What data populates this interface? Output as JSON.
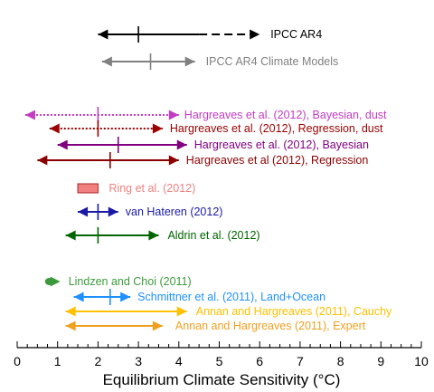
{
  "chart_data": {
    "type": "range",
    "xlabel": "Equilibrium Climate Sensitivity (°C)",
    "xlim": [
      0,
      10
    ],
    "xticks": [
      "0",
      "1",
      "2",
      "3",
      "4",
      "5",
      "6",
      "7",
      "8",
      "9",
      "10"
    ],
    "minor_tick_step": 0.25,
    "grid": false,
    "series": [
      {
        "name": "IPCC AR4",
        "low": 2.0,
        "central": 3.0,
        "high": 6.0,
        "dashed_from": 4.5,
        "color": "#000000",
        "style": "solid-then-dashed",
        "marker": "tick"
      },
      {
        "name": "IPCC AR4 Climate Models",
        "low": 2.1,
        "central": 3.3,
        "high": 4.4,
        "color": "#808080",
        "style": "solid",
        "marker": "tick"
      },
      {
        "name": "Hargreaves et al. (2012), Bayesian, dust",
        "low": 0.2,
        "central": 2.0,
        "high": 4.0,
        "color": "#c23cc2",
        "style": "dotted",
        "marker": "tick"
      },
      {
        "name": "Hargreaves et al. (2012), Regression, dust",
        "low": 0.8,
        "central": 2.0,
        "high": 3.6,
        "color": "#9b0000",
        "style": "dotted",
        "marker": "tick"
      },
      {
        "name": "Hargreaves et al. (2012), Bayesian",
        "low": 1.0,
        "central": 2.5,
        "high": 4.2,
        "color": "#800080",
        "style": "solid",
        "marker": "tick"
      },
      {
        "name": "Hargreaves et al (2012), Regression",
        "low": 0.5,
        "central": 2.3,
        "high": 4.0,
        "color": "#8b0000",
        "style": "solid",
        "marker": "tick"
      },
      {
        "name": "Ring et al. (2012)",
        "low": 1.5,
        "high": 2.0,
        "color": "#f08080",
        "style": "box"
      },
      {
        "name": "van Hateren (2012)",
        "low": 1.5,
        "central": 2.0,
        "high": 2.5,
        "color": "#1a1aa6",
        "style": "solid",
        "marker": "tick"
      },
      {
        "name": "Aldrin et al. (2012)",
        "low": 1.2,
        "central": 2.0,
        "high": 3.5,
        "color": "#006400",
        "style": "solid",
        "marker": "tick"
      },
      {
        "name": "Lindzen and Choi  (2011)",
        "low": 0.7,
        "central": 0.8,
        "high": 1.0,
        "color": "#3c9a3c",
        "style": "solid",
        "marker": "dot"
      },
      {
        "name": "Schmittner et al.  (2011), Land+Ocean",
        "low": 1.4,
        "central": 2.3,
        "high": 2.8,
        "color": "#1e90ff",
        "style": "solid",
        "marker": "tick"
      },
      {
        "name": "Annan and Hargreaves (2011), Cauchy",
        "low": 1.2,
        "high": 4.2,
        "color": "#ffc000",
        "style": "solid",
        "marker": "none"
      },
      {
        "name": "Annan and Hargreaves (2011), Expert",
        "low": 1.2,
        "high": 3.6,
        "color": "#f0a020",
        "style": "solid",
        "marker": "none"
      }
    ]
  }
}
